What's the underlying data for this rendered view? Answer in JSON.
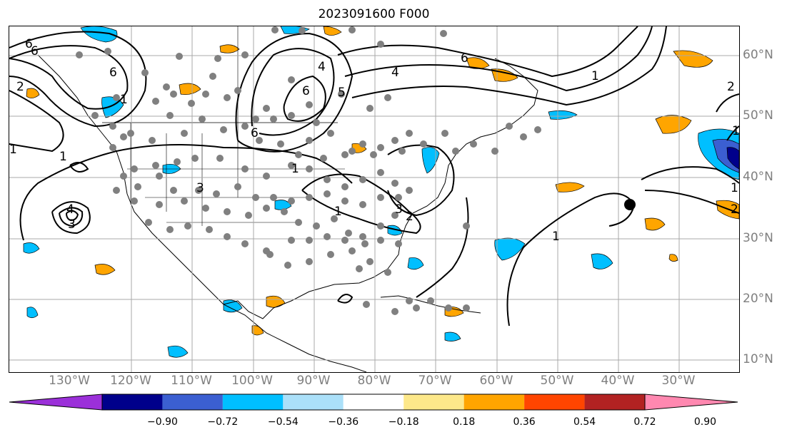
{
  "title": "2023091600 F000",
  "lon_labels": [
    "130°W",
    "120°W",
    "110°W",
    "100°W",
    "90°W",
    "80°W",
    "70°W",
    "60°W",
    "50°W",
    "40°W",
    "30°W"
  ],
  "lat_labels": [
    "60°N",
    "50°N",
    "40°N",
    "30°N",
    "20°N",
    "10°N"
  ],
  "colorbar": {
    "ticks": [
      "−0.90",
      "−0.72",
      "−0.54",
      "−0.36",
      "−0.18",
      "0.18",
      "0.36",
      "0.54",
      "0.72",
      "0.90"
    ],
    "colors": [
      "#9b30d9",
      "#00008b",
      "#3b5fd1",
      "#00bfff",
      "#abe0f9",
      "#ffffff",
      "#fde88a",
      "#ffa500",
      "#ff4500",
      "#b22222",
      "#ff88b0"
    ],
    "extend": "both"
  },
  "contour_labels": [
    "6",
    "6",
    "6",
    "6",
    "4",
    "4",
    "5",
    "2",
    "1",
    "1",
    "1",
    "1",
    "3",
    "3",
    "3",
    "2",
    "2",
    "1",
    "1",
    "1",
    "6",
    "1",
    "1",
    "4",
    "6",
    "2"
  ],
  "colors": {
    "positive": "#ffa500",
    "negative": "#00bfff",
    "strong_negative": "#3b5fd1",
    "station": "#808080",
    "grid": "#a9a9a9",
    "label": "#7f7f7f"
  }
}
